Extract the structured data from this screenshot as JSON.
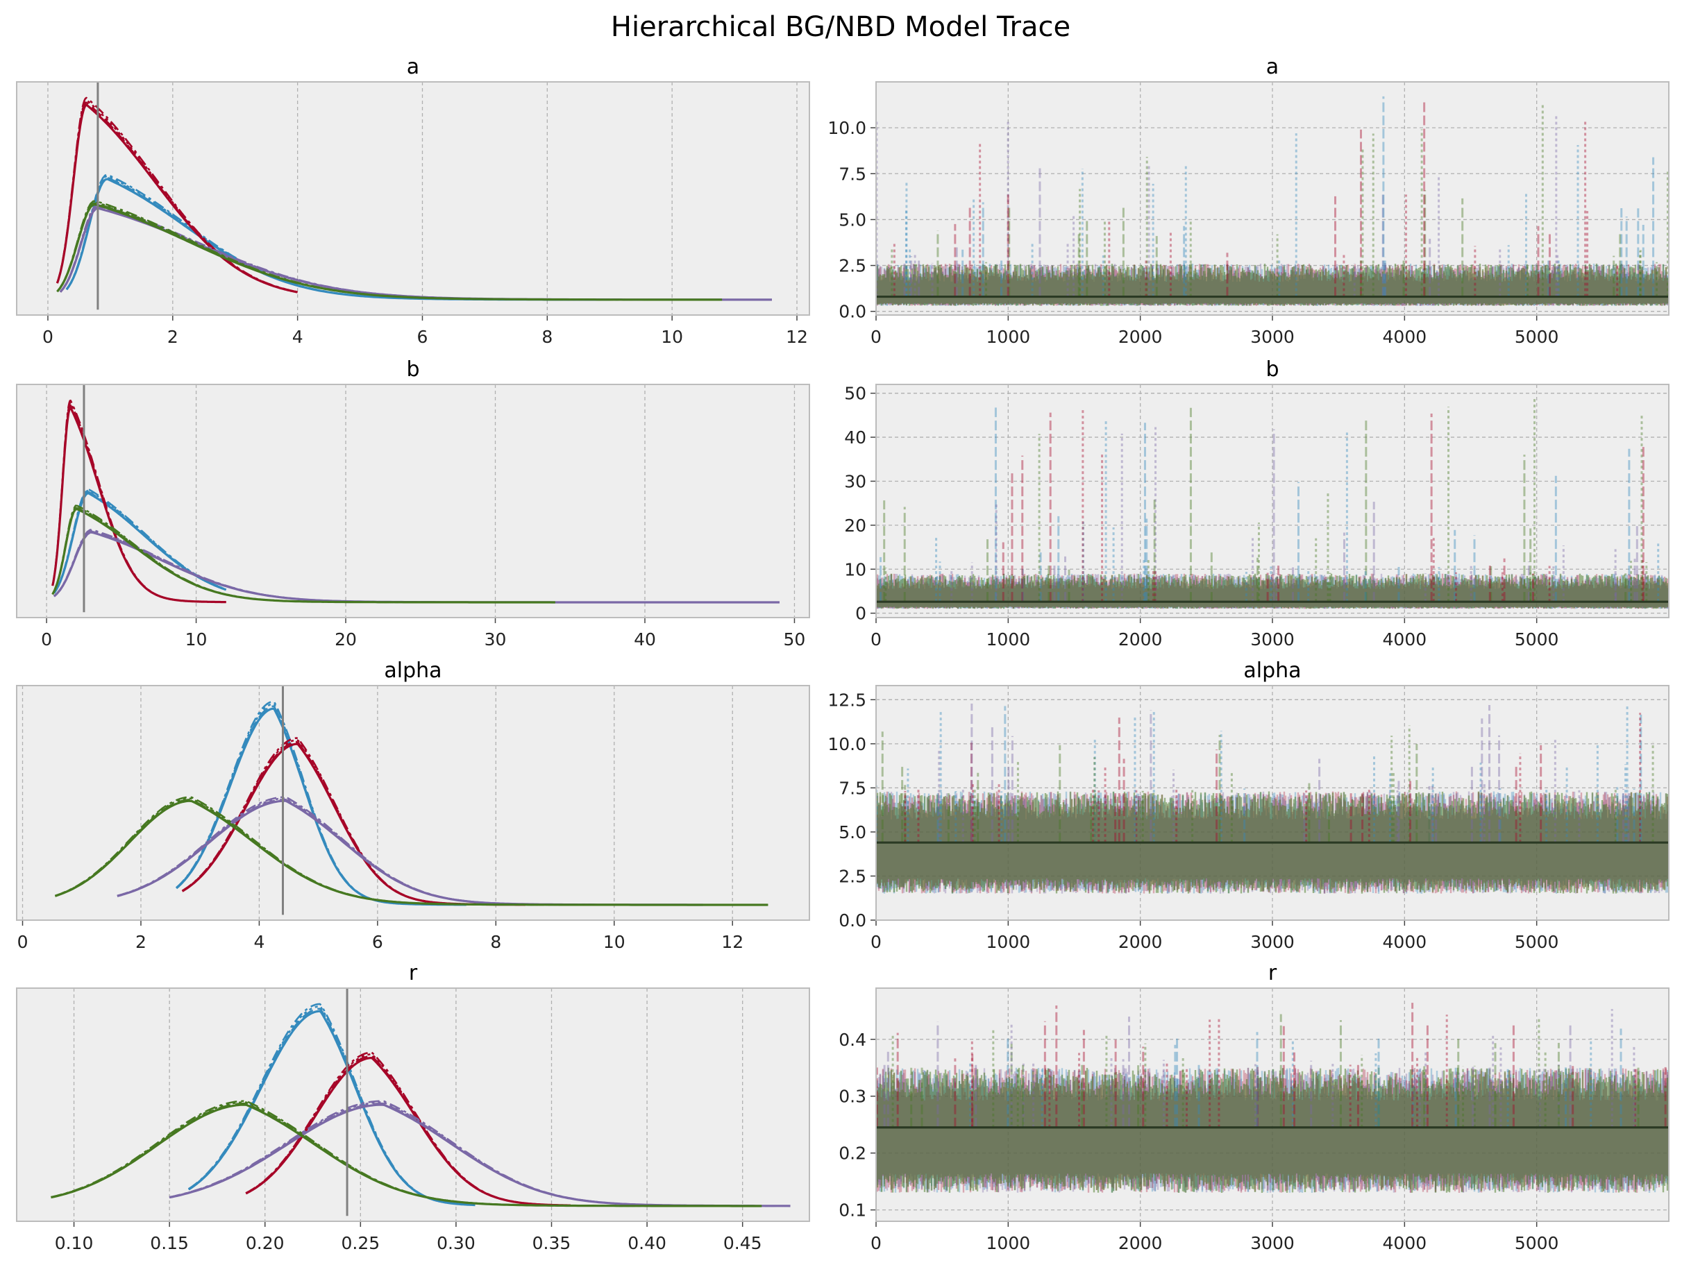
{
  "figure": {
    "title": "Hierarchical BG/NBD Model Trace"
  },
  "colors": {
    "panel_bg": "#eeeeee",
    "grid": "#b0b0b0",
    "spine": "#bcbcbc",
    "ref_line": "#808080",
    "mean_line": "#2b3a24",
    "chain_colors": [
      "#348abd",
      "#a60628",
      "#7a68a6",
      "#467821"
    ]
  },
  "chart_data": [
    {
      "type": "line",
      "panel": "kde",
      "title": "a",
      "xlim": [
        -0.5,
        12.2
      ],
      "xticks": [
        0,
        2,
        4,
        6,
        8,
        10,
        12
      ],
      "xtick_labels": [
        "0",
        "2",
        "4",
        "6",
        "8",
        "10",
        "12"
      ],
      "ref_value": 0.8,
      "series": [
        {
          "peak_x": 0.95,
          "peak_y": 0.62,
          "start": 0.3,
          "end": 9.0,
          "skew": 1.5
        },
        {
          "peak_x": 0.62,
          "peak_y": 1.0,
          "start": 0.15,
          "end": 4.0,
          "skew": 1.3
        },
        {
          "peak_x": 0.8,
          "peak_y": 0.47,
          "start": 0.2,
          "end": 11.6,
          "skew": 1.9
        },
        {
          "peak_x": 0.75,
          "peak_y": 0.49,
          "start": 0.15,
          "end": 10.8,
          "skew": 1.8
        }
      ]
    },
    {
      "type": "line",
      "panel": "trace",
      "title": "a",
      "xlim": [
        0,
        6000
      ],
      "ylim": [
        -0.2,
        12.5
      ],
      "xticks": [
        0,
        1000,
        2000,
        3000,
        4000,
        5000
      ],
      "xtick_labels": [
        "0",
        "1000",
        "2000",
        "3000",
        "4000",
        "5000"
      ],
      "yticks": [
        0,
        2.5,
        5,
        7.5,
        10
      ],
      "ytick_labels": [
        "0.0",
        "2.5",
        "5.0",
        "7.5",
        "10.0"
      ],
      "mean": 0.8,
      "band_low": 0.3,
      "band_high": 2.6,
      "spike_max": 11.8
    },
    {
      "type": "line",
      "panel": "kde",
      "title": "b",
      "xlim": [
        -2,
        51
      ],
      "xticks": [
        0,
        10,
        20,
        30,
        40,
        50
      ],
      "xtick_labels": [
        "0",
        "10",
        "20",
        "30",
        "40",
        "50"
      ],
      "ref_value": 2.5,
      "series": [
        {
          "peak_x": 2.8,
          "peak_y": 0.56,
          "start": 0.5,
          "end": 12.0,
          "skew": 4.5
        },
        {
          "peak_x": 1.6,
          "peak_y": 1.0,
          "start": 0.4,
          "end": 12.0,
          "skew": 2.2
        },
        {
          "peak_x": 3.0,
          "peak_y": 0.36,
          "start": 0.5,
          "end": 49.0,
          "skew": 5.5
        },
        {
          "peak_x": 2.0,
          "peak_y": 0.48,
          "start": 0.4,
          "end": 34.0,
          "skew": 4.5
        }
      ]
    },
    {
      "type": "line",
      "panel": "trace",
      "title": "b",
      "xlim": [
        0,
        6000
      ],
      "ylim": [
        -1,
        52
      ],
      "xticks": [
        0,
        1000,
        2000,
        3000,
        4000,
        5000
      ],
      "xtick_labels": [
        "0",
        "1000",
        "2000",
        "3000",
        "4000",
        "5000"
      ],
      "yticks": [
        0,
        10,
        20,
        30,
        40,
        50
      ],
      "ytick_labels": [
        "0",
        "10",
        "20",
        "30",
        "40",
        "50"
      ],
      "mean": 2.6,
      "band_low": 1.0,
      "band_high": 9.0,
      "spike_max": 49.0
    },
    {
      "type": "line",
      "panel": "kde",
      "title": "alpha",
      "xlim": [
        -0.1,
        13.3
      ],
      "xticks": [
        0,
        2,
        4,
        6,
        8,
        10,
        12
      ],
      "xtick_labels": [
        "0",
        "2",
        "4",
        "6",
        "8",
        "10",
        "12"
      ],
      "ref_value": 4.4,
      "series": [
        {
          "peak_x": 4.25,
          "peak_y": 1.0,
          "start": 2.6,
          "end": 7.5,
          "skew": 0.6
        },
        {
          "peak_x": 4.65,
          "peak_y": 0.82,
          "start": 2.7,
          "end": 8.5,
          "skew": 0.75
        },
        {
          "peak_x": 4.45,
          "peak_y": 0.53,
          "start": 1.6,
          "end": 11.5,
          "skew": 1.15
        },
        {
          "peak_x": 2.85,
          "peak_y": 0.53,
          "start": 0.55,
          "end": 12.6,
          "skew": 1.25
        }
      ]
    },
    {
      "type": "line",
      "panel": "trace",
      "title": "alpha",
      "xlim": [
        0,
        6000
      ],
      "ylim": [
        0,
        13.3
      ],
      "xticks": [
        0,
        1000,
        2000,
        3000,
        4000,
        5000
      ],
      "xtick_labels": [
        "0",
        "1000",
        "2000",
        "3000",
        "4000",
        "5000"
      ],
      "yticks": [
        0,
        2.5,
        5,
        7.5,
        10,
        12.5
      ],
      "ytick_labels": [
        "0.0",
        "2.5",
        "5.0",
        "7.5",
        "10.0",
        "12.5"
      ],
      "mean": 4.4,
      "band_low": 1.5,
      "band_high": 7.3,
      "spike_max": 12.5
    },
    {
      "type": "line",
      "panel": "kde",
      "title": "r",
      "xlim": [
        0.07,
        0.485
      ],
      "xticks": [
        0.1,
        0.15,
        0.2,
        0.25,
        0.3,
        0.35,
        0.4,
        0.45
      ],
      "xtick_labels": [
        "0.10",
        "0.15",
        "0.20",
        "0.25",
        "0.30",
        "0.35",
        "0.40",
        "0.45"
      ],
      "ref_value": 0.243,
      "series": [
        {
          "peak_x": 0.229,
          "peak_y": 1.0,
          "start": 0.16,
          "end": 0.31,
          "skew": 0.022
        },
        {
          "peak_x": 0.256,
          "peak_y": 0.76,
          "start": 0.19,
          "end": 0.36,
          "skew": 0.027
        },
        {
          "peak_x": 0.262,
          "peak_y": 0.52,
          "start": 0.15,
          "end": 0.475,
          "skew": 0.043
        },
        {
          "peak_x": 0.19,
          "peak_y": 0.52,
          "start": 0.088,
          "end": 0.46,
          "skew": 0.043
        }
      ]
    },
    {
      "type": "line",
      "panel": "trace",
      "title": "r",
      "xlim": [
        0,
        6000
      ],
      "ylim": [
        0.08,
        0.49
      ],
      "xticks": [
        0,
        1000,
        2000,
        3000,
        4000,
        5000
      ],
      "xtick_labels": [
        "0",
        "1000",
        "2000",
        "3000",
        "4000",
        "5000"
      ],
      "yticks": [
        0.1,
        0.2,
        0.3,
        0.4
      ],
      "ytick_labels": [
        "0.1",
        "0.2",
        "0.3",
        "0.4"
      ],
      "mean": 0.245,
      "band_low": 0.13,
      "band_high": 0.35,
      "spike_max": 0.47
    }
  ]
}
